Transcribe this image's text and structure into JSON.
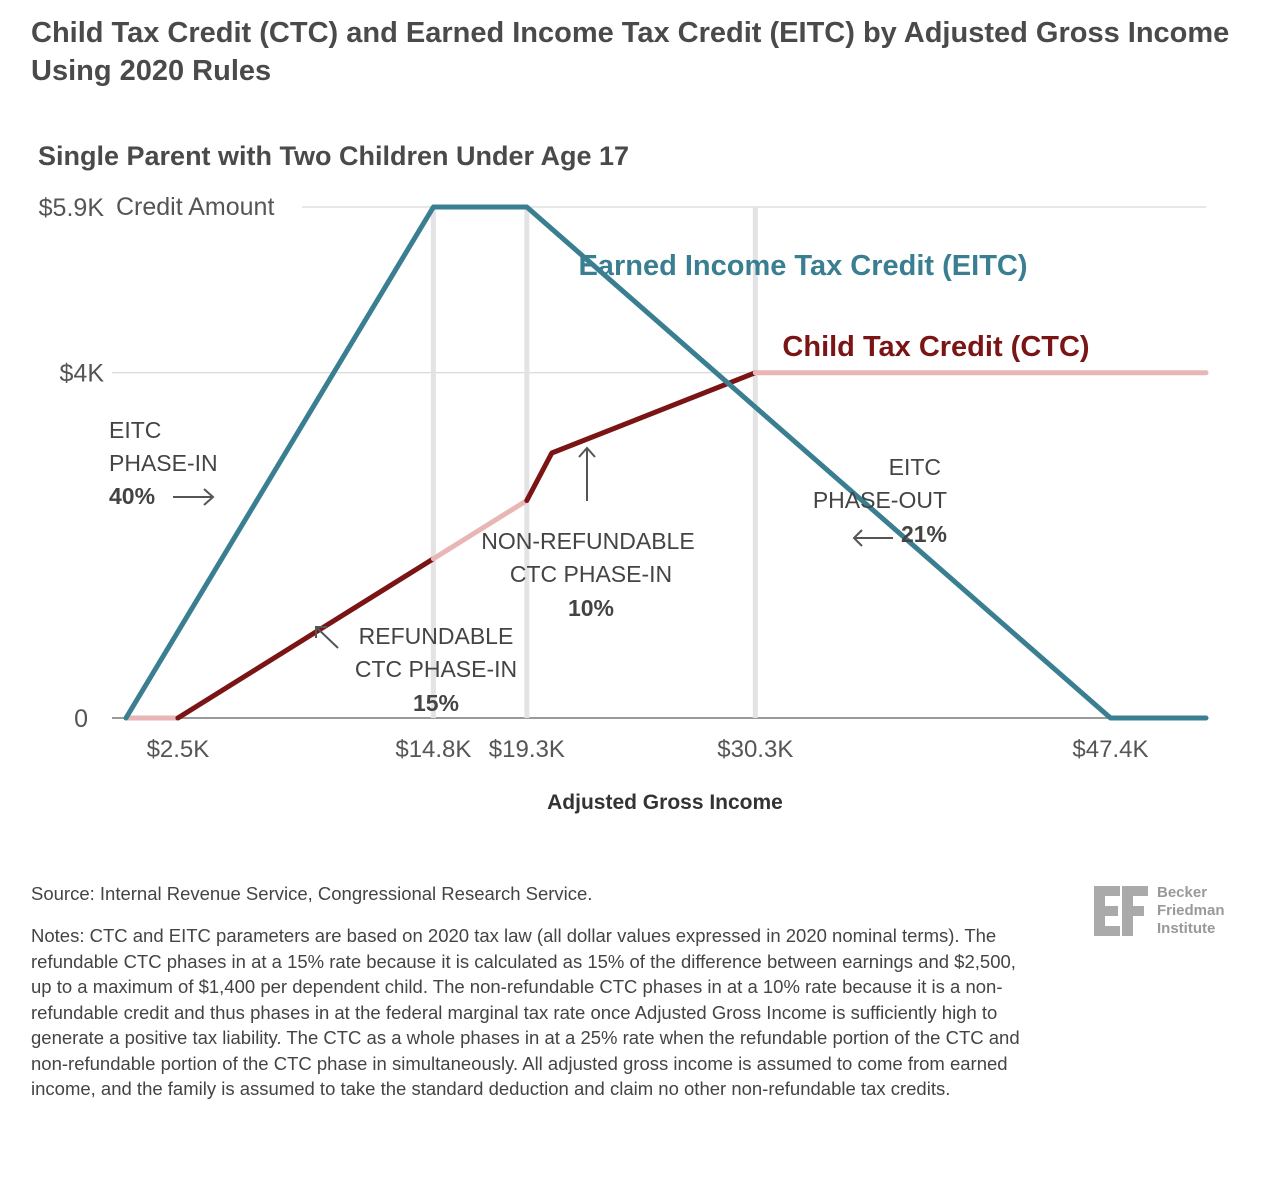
{
  "header": {
    "title": "Child Tax Credit (CTC) and Earned Income Tax Credit (EITC) by Adjusted Gross Income Using 2020 Rules"
  },
  "chart_data": {
    "type": "line",
    "subtitle": "Single Parent with Two Children Under Age 17",
    "xlabel": "Adjusted Gross Income",
    "ylabel": "Credit Amount",
    "xlim": [
      0,
      52000
    ],
    "ylim": [
      0,
      5920
    ],
    "grid": true,
    "x_ticks": [
      {
        "value": 2500,
        "label": "$2.5K"
      },
      {
        "value": 14800,
        "label": "$14.8K"
      },
      {
        "value": 19300,
        "label": "$19.3K"
      },
      {
        "value": 30300,
        "label": "$30.3K"
      },
      {
        "value": 47400,
        "label": "$47.4K"
      }
    ],
    "y_ticks": [
      {
        "value": 0,
        "label": "0"
      },
      {
        "value": 4000,
        "label": "$4K"
      },
      {
        "value": 5920,
        "label": "$5.9K"
      }
    ],
    "series": [
      {
        "name": "Earned Income Tax Credit (EITC)",
        "color": "#3a7f91",
        "points": [
          [
            0,
            0
          ],
          [
            14800,
            5920
          ],
          [
            19300,
            5920
          ],
          [
            47400,
            0
          ],
          [
            52000,
            0
          ]
        ]
      },
      {
        "name": "Child Tax Credit (CTC)",
        "color": "#7b1414",
        "light_color": "#e8b7b5",
        "segments": [
          {
            "style": "light",
            "points": [
              [
                0,
                0
              ],
              [
                2500,
                0
              ]
            ]
          },
          {
            "style": "dark",
            "points": [
              [
                2500,
                0
              ],
              [
                14800,
                1845
              ]
            ]
          },
          {
            "style": "light",
            "points": [
              [
                14800,
                1845
              ],
              [
                19300,
                2520
              ]
            ]
          },
          {
            "style": "dark",
            "points": [
              [
                19300,
                2520
              ],
              [
                20500,
                3070
              ],
              [
                30300,
                4000
              ]
            ]
          },
          {
            "style": "light",
            "points": [
              [
                30300,
                4000
              ],
              [
                52000,
                4000
              ]
            ]
          }
        ]
      }
    ],
    "annotations": {
      "eitc_phase_in": {
        "line1": "EITC",
        "line2": "PHASE-IN",
        "rate": "40%"
      },
      "eitc_phase_out": {
        "line1": "EITC",
        "line2": "PHASE-OUT",
        "rate": "21%"
      },
      "refundable": {
        "line1": "REFUNDABLE",
        "line2": "CTC PHASE-IN",
        "rate": "15%"
      },
      "nonrefundable": {
        "line1": "NON-REFUNDABLE",
        "line2": "CTC PHASE-IN",
        "rate": "10%"
      }
    }
  },
  "footer": {
    "source": "Source: Internal Revenue Service, Congressional Research Service.",
    "notes": "Notes: CTC and EITC parameters are based on 2020 tax law (all dollar values expressed in 2020 nominal terms). The refundable CTC phases in at a 15% rate because it is calculated as 15% of the difference between earnings and $2,500, up to a maximum of $1,400 per dependent child. The non-refundable CTC phases in at a 10% rate because it is a non-refundable credit and thus phases in at the federal marginal tax rate once Adjusted Gross Income is sufficiently high to generate a positive tax liability. The CTC as a whole phases in at a 25% rate when the refundable portion of the CTC and non-refundable portion of the CTC phase in simultaneously. All adjusted gross income is assumed to come from earned income, and the family is assumed to take the standard deduction and claim no other non-refundable tax credits."
  },
  "logo": {
    "mark": "BF",
    "line1": "Becker",
    "line2": "Friedman",
    "line3": "Institute"
  }
}
